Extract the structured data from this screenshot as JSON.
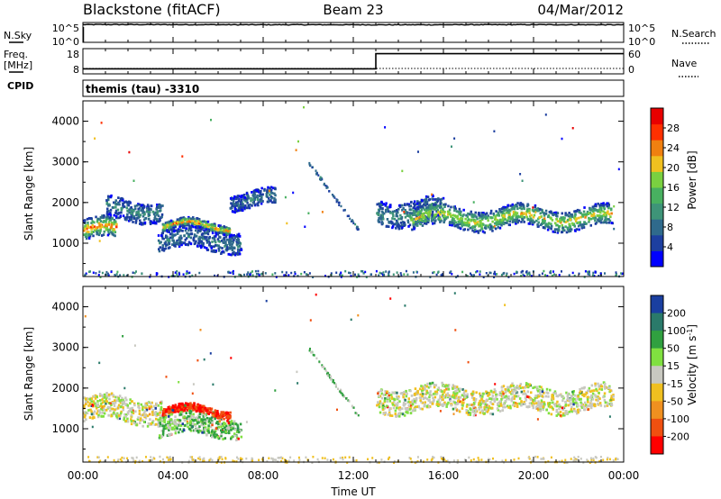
{
  "header": {
    "station": "Blackstone (fitACF)",
    "beam": "Beam 23",
    "date": "04/Mar/2012"
  },
  "top_panels": {
    "nsky_label": "N.Sky",
    "nsearch_label": "N.Search",
    "freq_label": "Freq.",
    "freq_unit": "[MHz]",
    "cpid_label": "CPID",
    "nave_label": "Nave",
    "noise_ticks": [
      "10^5",
      "10^0"
    ],
    "freq_ticks": [
      "18",
      "8"
    ],
    "nave_ticks": [
      "60",
      "0"
    ],
    "cpid_text": "themis (tau) -3310"
  },
  "chart_data": [
    {
      "type": "line",
      "title": "",
      "ylabel": "N.Sky",
      "y2label": "N.Search",
      "yscale": "log",
      "ylim": [
        1,
        100000
      ],
      "x": [
        "00:00",
        "02:00",
        "04:00",
        "06:00",
        "08:00",
        "10:00",
        "12:00",
        "14:00",
        "16:00",
        "18:00",
        "20:00",
        "22:00",
        "24:00"
      ],
      "series": [
        {
          "name": "N.Sky",
          "values": [
            30000,
            30000,
            29000,
            28000,
            27000,
            27500,
            27000,
            26500,
            27500,
            28000,
            28000,
            27500,
            26000
          ]
        }
      ]
    },
    {
      "type": "line",
      "ylabel": "Freq. [MHz]",
      "y2label": "Nave",
      "ylim": [
        8,
        18
      ],
      "y2lim": [
        0,
        60
      ],
      "x": [
        "00:00",
        "13:00",
        "13:00",
        "24:00"
      ],
      "series": [
        {
          "name": "Freq.",
          "values": [
            10,
            10,
            16,
            16
          ]
        }
      ]
    },
    {
      "type": "heatmap",
      "ylabel": "Slant Range [km]",
      "ylim": [
        180,
        4500
      ],
      "yticks": [
        1000,
        2000,
        3000,
        4000
      ],
      "xlim": [
        0,
        24
      ],
      "colorbar": {
        "label": "Power [dB]",
        "ticks": [
          4,
          8,
          12,
          16,
          20,
          24,
          28
        ],
        "range": [
          0,
          32
        ]
      },
      "regions": [
        {
          "t0": 0.0,
          "t1": 1.5,
          "r_center": 1350,
          "r_width": 500,
          "level": 22
        },
        {
          "t0": 1.0,
          "t1": 3.5,
          "r_center": 1850,
          "r_width": 500,
          "level": 8
        },
        {
          "t0": 3.5,
          "t1": 6.5,
          "r_center": 1450,
          "r_width": 200,
          "level": 22
        },
        {
          "t0": 3.3,
          "t1": 7.0,
          "r_center": 1100,
          "r_width": 500,
          "level": 6
        },
        {
          "t0": 6.5,
          "t1": 8.5,
          "r_center": 2100,
          "r_width": 400,
          "level": 6
        },
        {
          "t0": 13.0,
          "t1": 16.0,
          "r_center": 1800,
          "r_width": 600,
          "level": 8
        },
        {
          "t0": 14.5,
          "t1": 23.5,
          "r_center": 1650,
          "r_width": 500,
          "level": 18
        }
      ]
    },
    {
      "type": "heatmap",
      "ylabel": "Slant Range [km]",
      "ylim": [
        180,
        4500
      ],
      "yticks": [
        1000,
        2000,
        3000,
        4000
      ],
      "xlim": [
        0,
        24
      ],
      "colorbar": {
        "label": "Velocity [m s-1]",
        "ticks": [
          200,
          100,
          50,
          15,
          -15,
          -50,
          -100,
          -200
        ]
      },
      "regions": [
        {
          "t0": 0.0,
          "t1": 3.5,
          "r_center": 1500,
          "r_width": 600,
          "level": 0
        },
        {
          "t0": 3.5,
          "t1": 6.5,
          "r_center": 1450,
          "r_width": 200,
          "level": -150
        },
        {
          "t0": 3.3,
          "t1": 7.0,
          "r_center": 1100,
          "r_width": 500,
          "level": 30
        },
        {
          "t0": 13.0,
          "t1": 23.5,
          "r_center": 1750,
          "r_width": 600,
          "level": 0
        }
      ]
    }
  ],
  "x_axis": {
    "ticks": [
      "00:00",
      "04:00",
      "08:00",
      "12:00",
      "16:00",
      "20:00",
      "00:00"
    ],
    "label": "Time UT"
  }
}
